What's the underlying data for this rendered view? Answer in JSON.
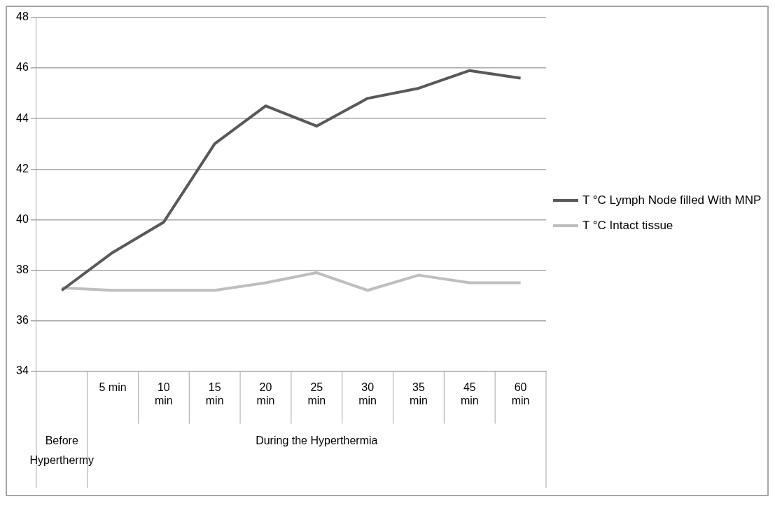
{
  "chart_data": {
    "type": "line",
    "categories": [
      null,
      "5 min",
      "10 min",
      "15 min",
      "20 min",
      "25 min",
      "30 min",
      "35 min",
      "45 min",
      "60 min"
    ],
    "series": [
      {
        "name": "T °C Lymph Node filled With MNP",
        "color": "#595959",
        "values": [
          37.2,
          38.7,
          39.9,
          43.0,
          44.5,
          43.7,
          44.8,
          45.2,
          45.9,
          45.6
        ]
      },
      {
        "name": "T °C Intact   tissue",
        "color": "#bfbfbf",
        "values": [
          37.3,
          37.2,
          37.2,
          37.2,
          37.5,
          37.9,
          37.2,
          37.8,
          37.5,
          37.5
        ]
      }
    ],
    "ylim": [
      34,
      48
    ],
    "yticks": [
      34,
      36,
      38,
      40,
      42,
      44,
      46,
      48
    ],
    "grid": "y",
    "legend": "right",
    "marker": "none",
    "line_style": "solid",
    "annotations": [
      "Before Hyperthermy",
      "During the Hyperthermia"
    ]
  }
}
